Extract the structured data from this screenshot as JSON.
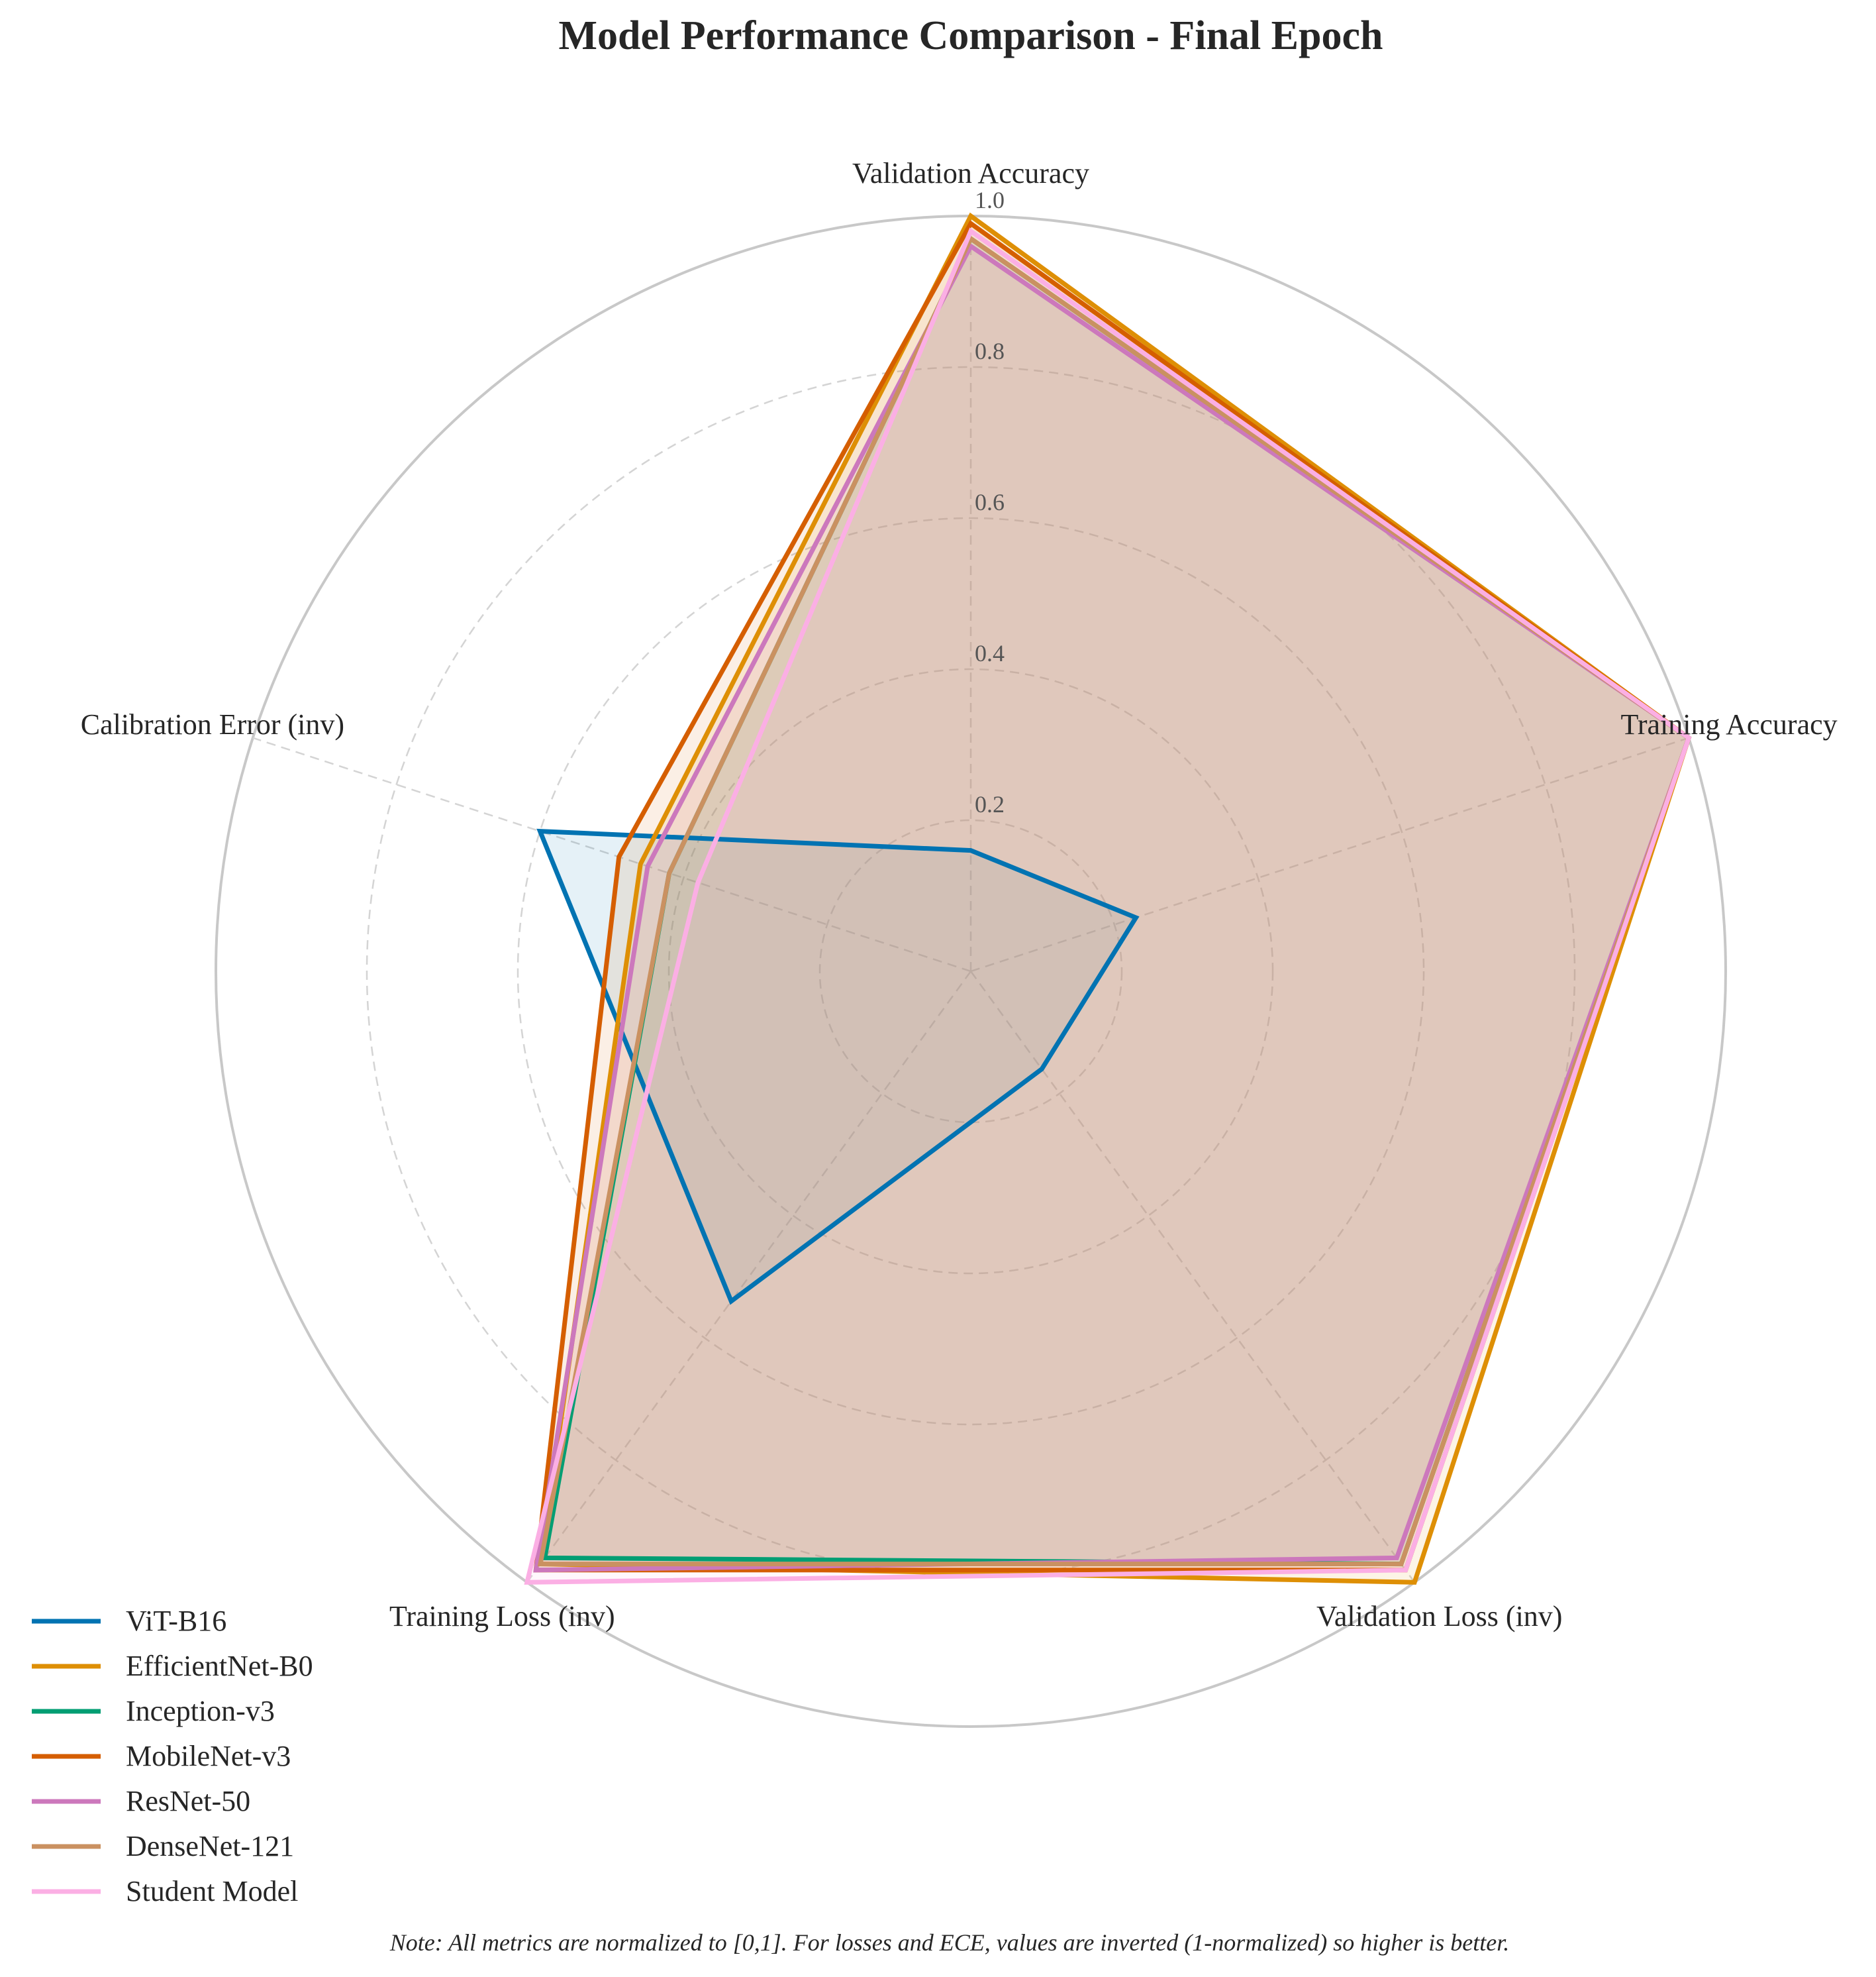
{
  "chart_data": {
    "type": "radar",
    "title": "Model Performance Comparison - Final Epoch",
    "axes": [
      "Validation Accuracy",
      "Training Accuracy",
      "Validation Loss (inv)",
      "Training Loss (inv)",
      "Calibration Error (inv)"
    ],
    "radial_range": [
      0,
      1.0
    ],
    "radial_ticks": [
      "0.2",
      "0.4",
      "0.6",
      "0.8",
      "1.0"
    ],
    "radial_tick_values": [
      0.2,
      0.4,
      0.6,
      0.8,
      1.0
    ],
    "grid": true,
    "legend_position": "lower-left",
    "series": [
      {
        "name": "ViT-B16",
        "color": "#0173b2",
        "fill_opacity": 0.1,
        "values": [
          0.16,
          0.23,
          0.16,
          0.54,
          0.6
        ]
      },
      {
        "name": "EfficientNet-B0",
        "color": "#de8f05",
        "fill_opacity": 0.1,
        "values": [
          1.0,
          1.0,
          1.0,
          0.97,
          0.46
        ]
      },
      {
        "name": "Inception-v3",
        "color": "#029e73",
        "fill_opacity": 0.1,
        "values": [
          0.97,
          1.0,
          0.97,
          0.96,
          0.42
        ]
      },
      {
        "name": "MobileNet-v3",
        "color": "#d55e00",
        "fill_opacity": 0.1,
        "values": [
          0.99,
          1.0,
          0.98,
          0.98,
          0.49
        ]
      },
      {
        "name": "ResNet-50",
        "color": "#cc78bc",
        "fill_opacity": 0.1,
        "values": [
          0.96,
          1.0,
          0.96,
          0.98,
          0.45
        ]
      },
      {
        "name": "DenseNet-121",
        "color": "#ca9161",
        "fill_opacity": 0.1,
        "values": [
          0.97,
          1.0,
          0.97,
          0.97,
          0.42
        ]
      },
      {
        "name": "Student Model",
        "color": "#fbafe4",
        "fill_opacity": 0.1,
        "values": [
          0.98,
          1.0,
          0.98,
          1.0,
          0.38
        ]
      }
    ]
  },
  "note": "Note: All metrics are normalized to [0,1]. For losses and ECE, values are inverted (1-normalized) so higher is better."
}
